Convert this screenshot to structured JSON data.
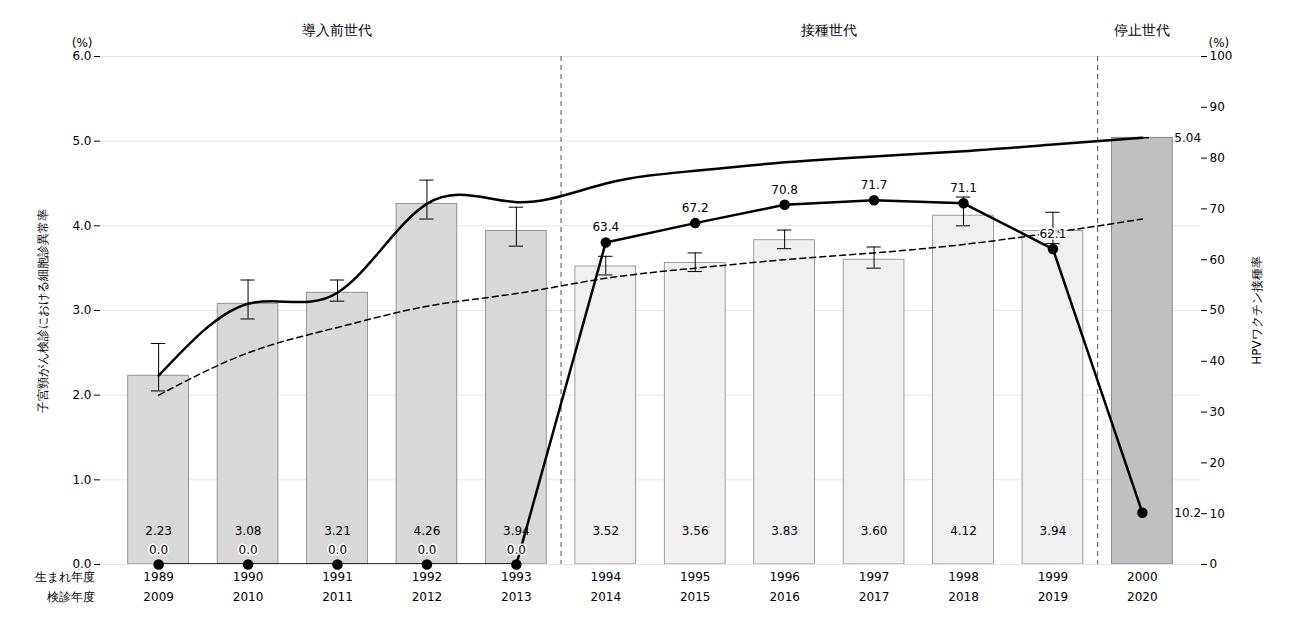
{
  "chart_data": {
    "type": "bar",
    "categories": [
      "1989",
      "1990",
      "1991",
      "1992",
      "1993",
      "1994",
      "1995",
      "1996",
      "1997",
      "1998",
      "1999",
      "2000"
    ],
    "xlabel": "生まれ年度",
    "categories_row2": [
      "2009",
      "2010",
      "2011",
      "2012",
      "2013",
      "2014",
      "2015",
      "2016",
      "2017",
      "2018",
      "2019",
      "2020"
    ],
    "xlabel_row2": "検診年度",
    "ylabel": "子宮頸がん検診における細胞診異常率",
    "y_unit": "(%)",
    "y2label": "HPVワクチン接種率",
    "y2_unit": "(%)",
    "ylim": [
      0,
      6
    ],
    "yticks": [
      0,
      1,
      2,
      3,
      4,
      5,
      6
    ],
    "y2lim": [
      0,
      100
    ],
    "y2ticks": [
      0,
      10,
      20,
      30,
      40,
      50,
      60,
      70,
      80,
      90,
      100
    ],
    "grid": true,
    "sections": [
      {
        "label": "導入前世代",
        "from": "1989",
        "to": "1993"
      },
      {
        "label": "接種世代",
        "from": "1994",
        "to": "1999"
      },
      {
        "label": "停止世代",
        "from": "2000",
        "to": "2000"
      }
    ],
    "series": [
      {
        "type": "bar",
        "colors": [
          "#d8d8d8",
          "#d8d8d8",
          "#d8d8d8",
          "#d8d8d8",
          "#d8d8d8",
          "#f0f0f0",
          "#f0f0f0",
          "#f0f0f0",
          "#f0f0f0",
          "#f0f0f0",
          "#f0f0f0",
          "#c0c0c0"
        ],
        "values": [
          2.23,
          3.08,
          3.21,
          4.26,
          3.94,
          3.52,
          3.56,
          3.83,
          3.6,
          4.12,
          3.94,
          5.04
        ],
        "errors_upper": [
          0.38,
          0.28,
          0.15,
          0.28,
          0.28,
          0.12,
          0.12,
          0.12,
          0.15,
          0.22,
          0.22,
          0.0
        ],
        "errors_lower": [
          0.18,
          0.18,
          0.1,
          0.18,
          0.18,
          0.1,
          0.1,
          0.1,
          0.1,
          0.12,
          0.15,
          0.0
        ],
        "data_labels": true,
        "value_labels": [
          "2.23",
          "3.08",
          "3.21",
          "4.26",
          "3.94",
          "3.52",
          "3.56",
          "3.83",
          "3.60",
          "4.12",
          "3.94",
          null
        ]
      },
      {
        "type": "line",
        "axis": "y2",
        "color": "#000000",
        "marker": "circle",
        "line_style": "solid",
        "values": [
          0.0,
          0.0,
          0.0,
          0.0,
          0.0,
          63.4,
          67.2,
          70.8,
          71.7,
          71.1,
          62.1,
          10.2
        ],
        "data_labels": true,
        "value_labels": [
          "0.0",
          "0.0",
          "0.0",
          "0.0",
          "0.0",
          "63.4",
          "67.2",
          "70.8",
          "71.7",
          "71.1",
          "62.1",
          "10.2"
        ]
      },
      {
        "type": "line",
        "color": "#000000",
        "marker": "none",
        "line_style": "solid",
        "values": [
          2.23,
          3.08,
          3.21,
          4.26,
          4.28,
          4.5,
          4.65,
          4.75,
          4.82,
          4.88,
          4.96,
          5.04
        ],
        "data_labels": true,
        "value_labels": [
          null,
          null,
          null,
          null,
          null,
          null,
          null,
          null,
          null,
          null,
          null,
          "5.04"
        ]
      },
      {
        "type": "line",
        "color": "#000000",
        "marker": "none",
        "line_style": "dashed",
        "values": [
          2.0,
          2.5,
          2.8,
          3.05,
          3.2,
          3.38,
          3.5,
          3.6,
          3.68,
          3.78,
          3.92,
          4.08
        ]
      }
    ]
  }
}
